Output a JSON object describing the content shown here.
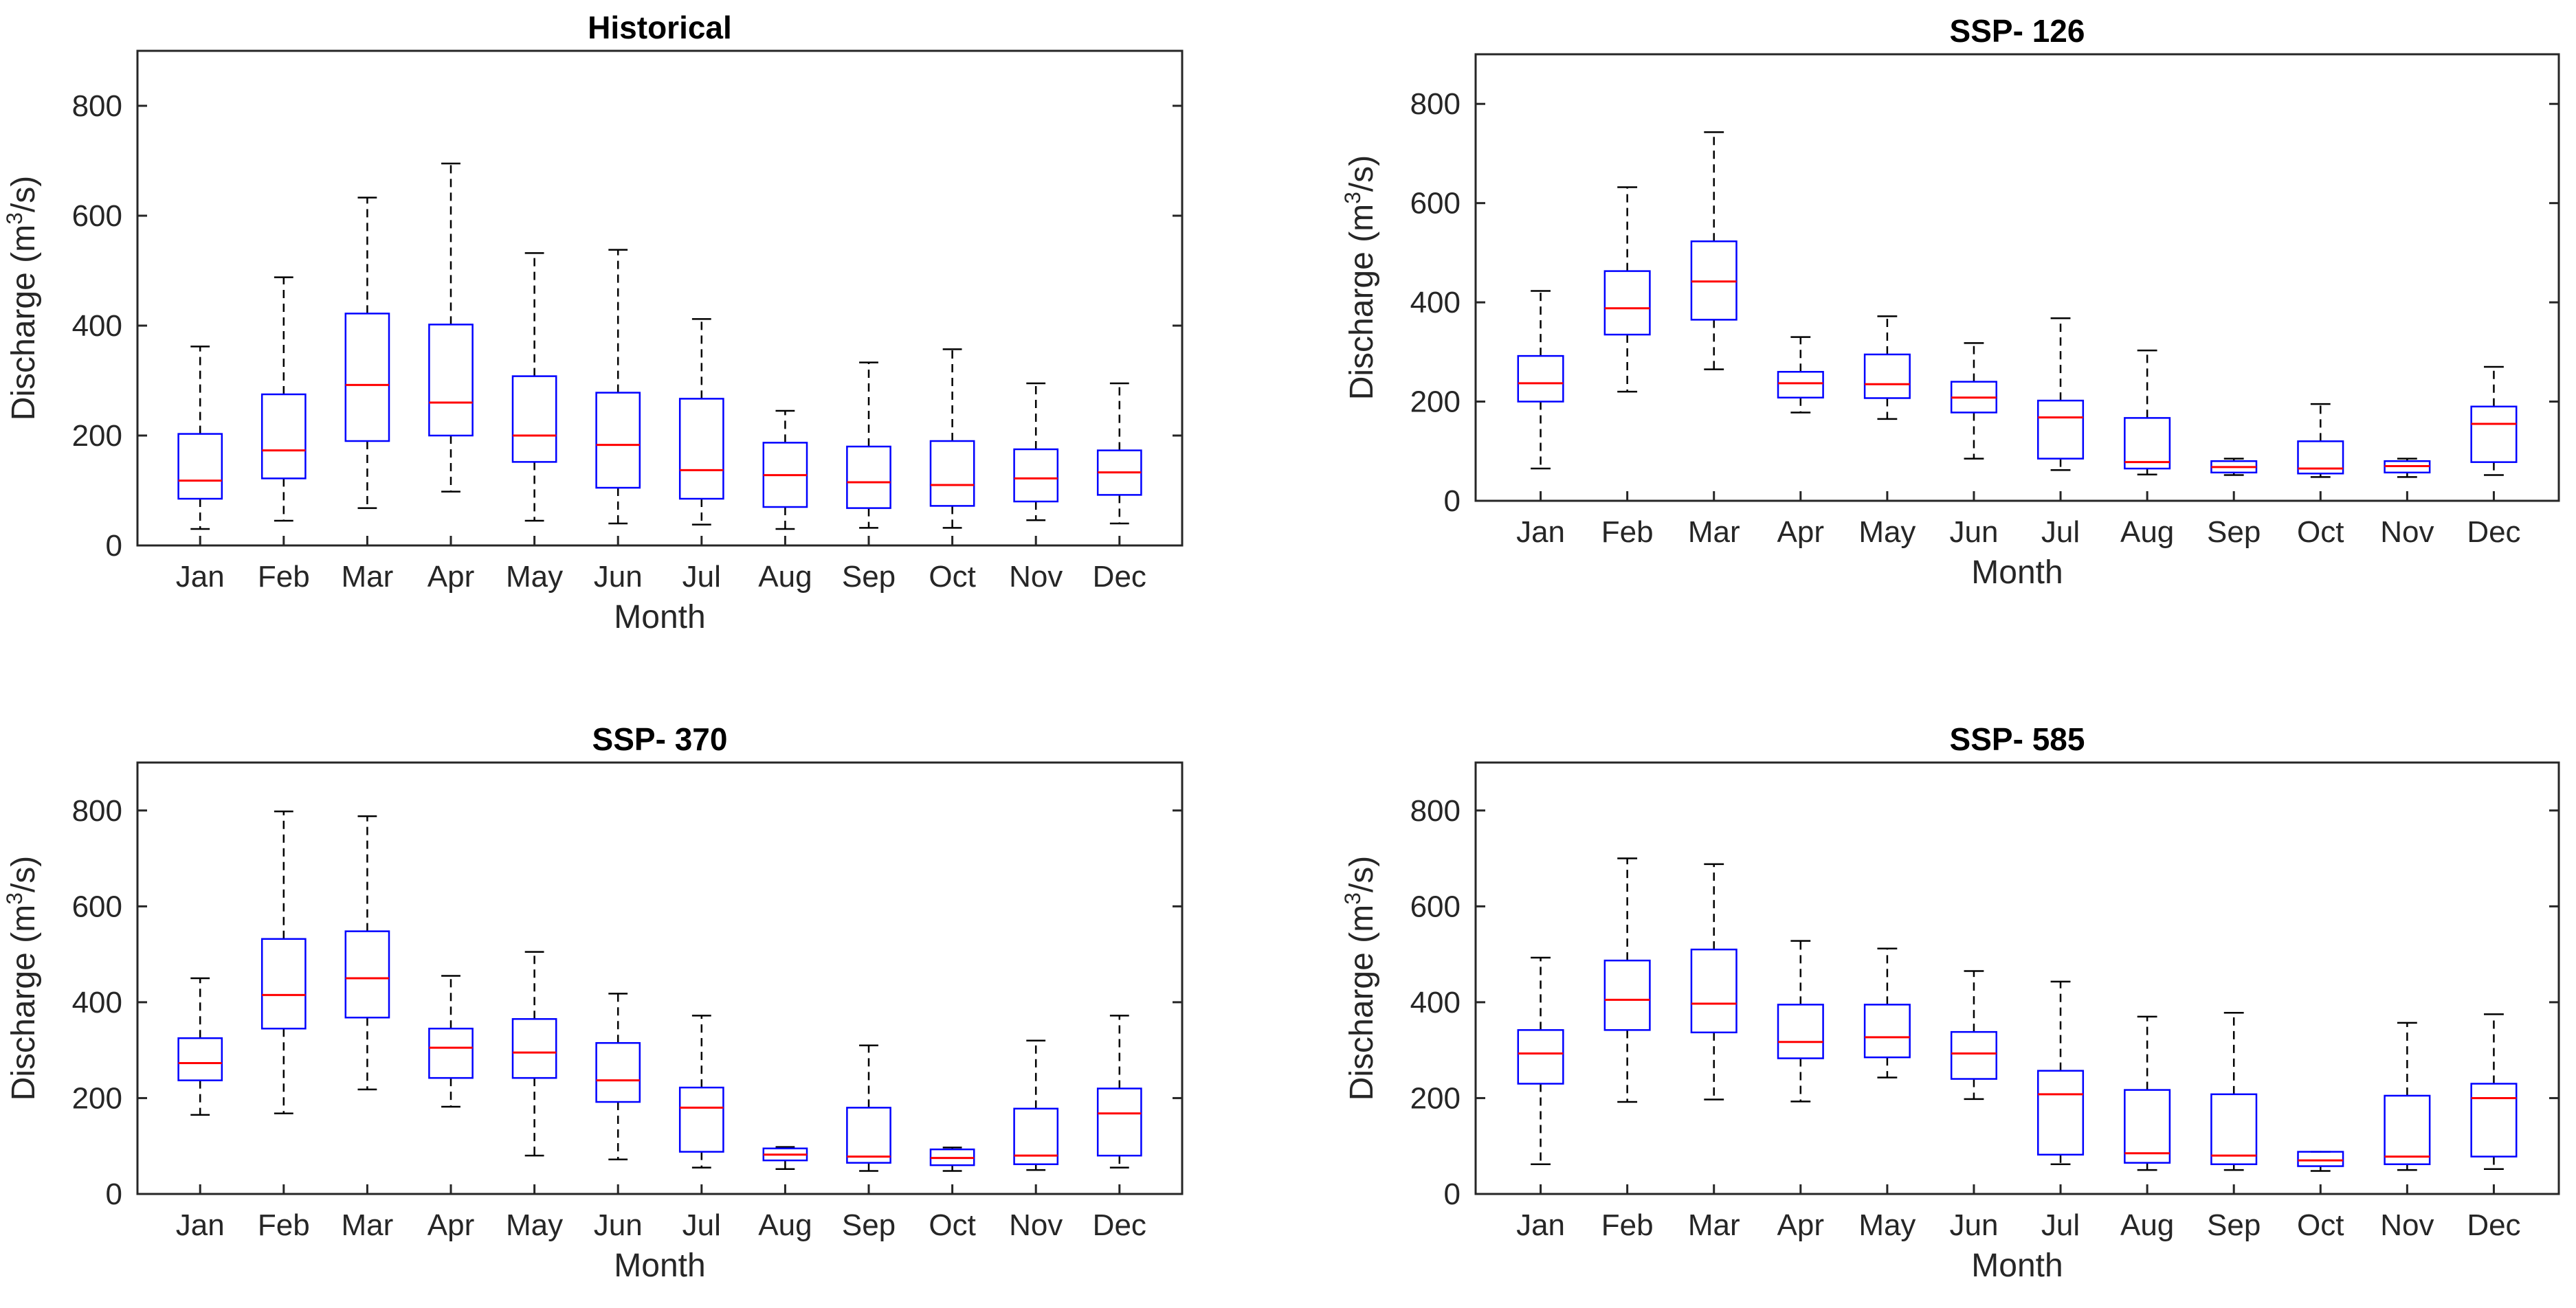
{
  "style": {
    "box_color": "#0000ff",
    "median_color": "#ff0000",
    "whisker_color": "#000000",
    "axis_color": "#262626"
  },
  "chart_data": [
    {
      "type": "box",
      "title": "Historical",
      "xlabel": "Month",
      "ylabel": "Discharge (m³/s)",
      "ylim": [
        0,
        900
      ],
      "yticks": [
        0,
        200,
        400,
        600,
        800
      ],
      "categories": [
        "Jan",
        "Feb",
        "Mar",
        "Apr",
        "May",
        "Jun",
        "Jul",
        "Aug",
        "Sep",
        "Oct",
        "Nov",
        "Dec"
      ],
      "boxes": [
        {
          "min": 30,
          "q1": 85,
          "median": 118,
          "q3": 203,
          "max": 362
        },
        {
          "min": 45,
          "q1": 122,
          "median": 173,
          "q3": 275,
          "max": 488
        },
        {
          "min": 68,
          "q1": 190,
          "median": 292,
          "q3": 422,
          "max": 633
        },
        {
          "min": 98,
          "q1": 200,
          "median": 260,
          "q3": 402,
          "max": 695
        },
        {
          "min": 45,
          "q1": 152,
          "median": 200,
          "q3": 308,
          "max": 532
        },
        {
          "min": 40,
          "q1": 105,
          "median": 183,
          "q3": 278,
          "max": 538
        },
        {
          "min": 38,
          "q1": 85,
          "median": 137,
          "q3": 267,
          "max": 412
        },
        {
          "min": 30,
          "q1": 70,
          "median": 128,
          "q3": 187,
          "max": 245
        },
        {
          "min": 32,
          "q1": 68,
          "median": 115,
          "q3": 180,
          "max": 333
        },
        {
          "min": 32,
          "q1": 72,
          "median": 110,
          "q3": 190,
          "max": 357
        },
        {
          "min": 46,
          "q1": 80,
          "median": 122,
          "q3": 175,
          "max": 295
        },
        {
          "min": 40,
          "q1": 92,
          "median": 133,
          "q3": 173,
          "max": 295
        }
      ]
    },
    {
      "type": "box",
      "title": "SSP- 126",
      "xlabel": "Month",
      "ylabel": "Discharge (m³/s)",
      "ylim": [
        0,
        900
      ],
      "yticks": [
        0,
        200,
        400,
        600,
        800
      ],
      "categories": [
        "Jan",
        "Feb",
        "Mar",
        "Apr",
        "May",
        "Jun",
        "Jul",
        "Aug",
        "Sep",
        "Oct",
        "Nov",
        "Dec"
      ],
      "boxes": [
        {
          "min": 65,
          "q1": 200,
          "median": 237,
          "q3": 292,
          "max": 423
        },
        {
          "min": 220,
          "q1": 335,
          "median": 388,
          "q3": 463,
          "max": 632
        },
        {
          "min": 265,
          "q1": 365,
          "median": 442,
          "q3": 523,
          "max": 743
        },
        {
          "min": 178,
          "q1": 208,
          "median": 237,
          "q3": 260,
          "max": 330
        },
        {
          "min": 165,
          "q1": 207,
          "median": 235,
          "q3": 295,
          "max": 372
        },
        {
          "min": 85,
          "q1": 178,
          "median": 208,
          "q3": 240,
          "max": 318
        },
        {
          "min": 62,
          "q1": 85,
          "median": 168,
          "q3": 202,
          "max": 368
        },
        {
          "min": 53,
          "q1": 65,
          "median": 78,
          "q3": 167,
          "max": 303
        },
        {
          "min": 52,
          "q1": 57,
          "median": 68,
          "q3": 80,
          "max": 85
        },
        {
          "min": 48,
          "q1": 55,
          "median": 65,
          "q3": 120,
          "max": 195
        },
        {
          "min": 48,
          "q1": 57,
          "median": 70,
          "q3": 80,
          "max": 85
        },
        {
          "min": 52,
          "q1": 78,
          "median": 155,
          "q3": 190,
          "max": 270
        }
      ]
    },
    {
      "type": "box",
      "title": "SSP- 370",
      "xlabel": "Month",
      "ylabel": "Discharge (m³/s)",
      "ylim": [
        0,
        900
      ],
      "yticks": [
        0,
        200,
        400,
        600,
        800
      ],
      "categories": [
        "Jan",
        "Feb",
        "Mar",
        "Apr",
        "May",
        "Jun",
        "Jul",
        "Aug",
        "Sep",
        "Oct",
        "Nov",
        "Dec"
      ],
      "boxes": [
        {
          "min": 165,
          "q1": 237,
          "median": 273,
          "q3": 325,
          "max": 450
        },
        {
          "min": 168,
          "q1": 345,
          "median": 415,
          "q3": 532,
          "max": 798
        },
        {
          "min": 218,
          "q1": 368,
          "median": 450,
          "q3": 548,
          "max": 788
        },
        {
          "min": 182,
          "q1": 242,
          "median": 305,
          "q3": 345,
          "max": 455
        },
        {
          "min": 80,
          "q1": 242,
          "median": 295,
          "q3": 365,
          "max": 505
        },
        {
          "min": 72,
          "q1": 192,
          "median": 237,
          "q3": 315,
          "max": 418
        },
        {
          "min": 55,
          "q1": 88,
          "median": 180,
          "q3": 222,
          "max": 372
        },
        {
          "min": 52,
          "q1": 70,
          "median": 82,
          "q3": 95,
          "max": 98
        },
        {
          "min": 48,
          "q1": 65,
          "median": 78,
          "q3": 180,
          "max": 310
        },
        {
          "min": 48,
          "q1": 60,
          "median": 75,
          "q3": 93,
          "max": 97
        },
        {
          "min": 50,
          "q1": 62,
          "median": 80,
          "q3": 178,
          "max": 320
        },
        {
          "min": 55,
          "q1": 80,
          "median": 168,
          "q3": 220,
          "max": 372
        }
      ]
    },
    {
      "type": "box",
      "title": "SSP- 585",
      "xlabel": "Month",
      "ylabel": "Discharge (m³/s)",
      "ylim": [
        0,
        900
      ],
      "yticks": [
        0,
        200,
        400,
        600,
        800
      ],
      "categories": [
        "Jan",
        "Feb",
        "Mar",
        "Apr",
        "May",
        "Jun",
        "Jul",
        "Aug",
        "Sep",
        "Oct",
        "Nov",
        "Dec"
      ],
      "boxes": [
        {
          "min": 62,
          "q1": 230,
          "median": 293,
          "q3": 342,
          "max": 493
        },
        {
          "min": 192,
          "q1": 342,
          "median": 405,
          "q3": 487,
          "max": 700
        },
        {
          "min": 197,
          "q1": 337,
          "median": 397,
          "q3": 510,
          "max": 688
        },
        {
          "min": 193,
          "q1": 283,
          "median": 317,
          "q3": 395,
          "max": 528
        },
        {
          "min": 243,
          "q1": 285,
          "median": 327,
          "q3": 395,
          "max": 512
        },
        {
          "min": 198,
          "q1": 240,
          "median": 293,
          "q3": 338,
          "max": 465
        },
        {
          "min": 62,
          "q1": 82,
          "median": 208,
          "q3": 257,
          "max": 443
        },
        {
          "min": 50,
          "q1": 65,
          "median": 85,
          "q3": 217,
          "max": 370
        },
        {
          "min": 50,
          "q1": 62,
          "median": 80,
          "q3": 208,
          "max": 378
        },
        {
          "min": 48,
          "q1": 58,
          "median": 70,
          "q3": 88,
          "max": 88
        },
        {
          "min": 50,
          "q1": 62,
          "median": 78,
          "q3": 205,
          "max": 357
        },
        {
          "min": 52,
          "q1": 78,
          "median": 200,
          "q3": 230,
          "max": 375
        }
      ]
    }
  ]
}
